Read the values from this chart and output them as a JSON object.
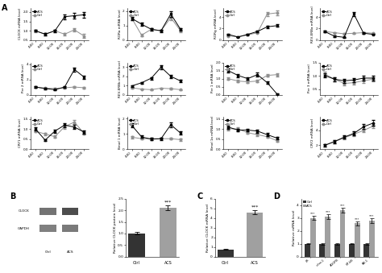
{
  "timepoints": [
    4,
    8,
    12,
    16,
    20,
    24
  ],
  "xtick_labels": [
    "4:00",
    "8:00",
    "12:00",
    "16:00",
    "20:00",
    "24:00"
  ],
  "plots": [
    {
      "ylabel": "CLOCK mRNA level",
      "ACS": [
        1.0,
        0.82,
        1.0,
        1.75,
        1.8,
        1.85
      ],
      "Ctrl": [
        1.0,
        0.82,
        1.0,
        0.82,
        1.05,
        0.72
      ],
      "ACS_err": [
        0.05,
        0.08,
        0.06,
        0.12,
        0.13,
        0.14
      ],
      "Ctrl_err": [
        0.06,
        0.07,
        0.07,
        0.07,
        0.09,
        0.1
      ],
      "ylim": [
        0.5,
        2.2
      ]
    },
    {
      "ylabel": "RORa mRNA level",
      "ACS": [
        1.5,
        1.1,
        0.75,
        0.65,
        1.8,
        0.75
      ],
      "Ctrl": [
        1.5,
        0.35,
        0.75,
        0.65,
        1.55,
        0.65
      ],
      "ACS_err": [
        0.12,
        0.1,
        0.08,
        0.08,
        0.18,
        0.09
      ],
      "Ctrl_err": [
        0.12,
        0.07,
        0.08,
        0.07,
        0.15,
        0.08
      ],
      "ylim": [
        0.0,
        2.2
      ]
    },
    {
      "ylabel": "RORg mRNA level",
      "ACS": [
        1.0,
        0.55,
        1.0,
        1.5,
        2.3,
        2.5
      ],
      "Ctrl": [
        0.75,
        0.6,
        0.9,
        1.3,
        4.5,
        4.7
      ],
      "ACS_err": [
        0.08,
        0.06,
        0.09,
        0.12,
        0.2,
        0.22
      ],
      "Ctrl_err": [
        0.07,
        0.06,
        0.08,
        0.11,
        0.4,
        0.42
      ],
      "ylim": [
        0.0,
        5.5
      ]
    },
    {
      "ylabel": "REV-ERBa mRNA level",
      "ACS": [
        1.5,
        0.7,
        0.5,
        4.5,
        1.2,
        1.0
      ],
      "Ctrl": [
        1.5,
        1.3,
        1.1,
        1.2,
        1.3,
        1.2
      ],
      "ACS_err": [
        0.15,
        0.09,
        0.07,
        0.4,
        0.12,
        0.1
      ],
      "Ctrl_err": [
        0.12,
        0.1,
        0.09,
        0.1,
        0.11,
        0.1
      ],
      "ylim": [
        0.0,
        5.5
      ]
    },
    {
      "ylabel": "Per 2 mRNA level",
      "ACS": [
        1.0,
        0.8,
        0.65,
        1.0,
        3.3,
        2.3
      ],
      "Ctrl": [
        1.0,
        0.85,
        0.8,
        0.9,
        1.0,
        0.9
      ],
      "ACS_err": [
        0.08,
        0.07,
        0.06,
        0.09,
        0.28,
        0.22
      ],
      "Ctrl_err": [
        0.07,
        0.06,
        0.06,
        0.07,
        0.08,
        0.08
      ],
      "ylim": [
        0.0,
        4.2
      ]
    },
    {
      "ylabel": "REV-ERBb mRNA level",
      "ACS": [
        0.95,
        1.3,
        1.8,
        3.0,
        2.0,
        1.5
      ],
      "Ctrl": [
        0.75,
        0.6,
        0.55,
        0.7,
        0.65,
        0.55
      ],
      "ACS_err": [
        0.09,
        0.1,
        0.13,
        0.22,
        0.15,
        0.12
      ],
      "Ctrl_err": [
        0.07,
        0.06,
        0.05,
        0.06,
        0.06,
        0.05
      ],
      "ylim": [
        0.0,
        3.5
      ]
    },
    {
      "ylabel": "Per 1 mRNA level",
      "ACS": [
        1.5,
        1.2,
        1.0,
        1.25,
        0.75,
        0.05
      ],
      "Ctrl": [
        1.0,
        0.85,
        0.8,
        0.85,
        1.2,
        1.25
      ],
      "ACS_err": [
        0.13,
        0.1,
        0.09,
        0.11,
        0.08,
        0.04
      ],
      "Ctrl_err": [
        0.08,
        0.07,
        0.07,
        0.07,
        0.09,
        0.1
      ],
      "ylim": [
        0.0,
        2.0
      ]
    },
    {
      "ylabel": "Per 3 mRNA level",
      "ACS": [
        1.02,
        0.88,
        0.82,
        0.85,
        0.92,
        0.92
      ],
      "Ctrl": [
        1.08,
        0.88,
        0.72,
        0.75,
        0.82,
        0.88
      ],
      "ACS_err": [
        0.08,
        0.07,
        0.07,
        0.07,
        0.08,
        0.09
      ],
      "Ctrl_err": [
        0.08,
        0.07,
        0.06,
        0.07,
        0.07,
        0.08
      ],
      "ylim": [
        0.3,
        1.5
      ]
    },
    {
      "ylabel": "CRY1 mRNA level",
      "ACS": [
        1.0,
        0.45,
        0.9,
        1.2,
        1.1,
        0.85
      ],
      "Ctrl": [
        0.9,
        0.75,
        0.62,
        1.12,
        1.35,
        0.78
      ],
      "ACS_err": [
        0.09,
        0.05,
        0.08,
        0.1,
        0.1,
        0.08
      ],
      "Ctrl_err": [
        0.07,
        0.06,
        0.06,
        0.09,
        0.1,
        0.07
      ],
      "ylim": [
        0.0,
        1.6
      ]
    },
    {
      "ylabel": "Bmal 1 mRNA level",
      "ACS": [
        1.55,
        0.8,
        0.65,
        0.68,
        1.6,
        1.05
      ],
      "Ctrl": [
        0.78,
        0.68,
        0.68,
        0.68,
        0.68,
        0.62
      ],
      "ACS_err": [
        0.13,
        0.08,
        0.07,
        0.07,
        0.15,
        0.1
      ],
      "Ctrl_err": [
        0.07,
        0.06,
        0.06,
        0.06,
        0.06,
        0.06
      ],
      "ylim": [
        0.0,
        2.1
      ]
    },
    {
      "ylabel": "Bmal 1a mRNA level",
      "ACS": [
        1.1,
        0.95,
        0.95,
        0.9,
        0.72,
        0.55
      ],
      "Ctrl": [
        1.02,
        1.0,
        0.82,
        0.72,
        0.62,
        0.42
      ],
      "ACS_err": [
        0.09,
        0.08,
        0.08,
        0.08,
        0.07,
        0.06
      ],
      "Ctrl_err": [
        0.09,
        0.09,
        0.07,
        0.07,
        0.06,
        0.05
      ],
      "ylim": [
        0.0,
        1.6
      ]
    },
    {
      "ylabel": "CRY2 mRNA level",
      "ACS": [
        2.0,
        2.5,
        3.1,
        3.6,
        4.5,
        5.0
      ],
      "Ctrl": [
        2.0,
        2.5,
        3.0,
        3.5,
        4.0,
        4.6
      ],
      "ACS_err": [
        0.15,
        0.18,
        0.22,
        0.26,
        0.32,
        0.38
      ],
      "Ctrl_err": [
        0.15,
        0.18,
        0.2,
        0.23,
        0.26,
        0.32
      ],
      "ylim": [
        1.5,
        5.8
      ]
    }
  ],
  "B_bar_values": [
    1.0,
    2.1
  ],
  "B_bar_err": [
    0.05,
    0.1
  ],
  "B_bar_labels": [
    "Ctrl",
    "ACS"
  ],
  "B_ylabel": "Relative CLOCK protein level",
  "B_ylim": [
    0,
    2.5
  ],
  "C_bar_values": [
    0.75,
    4.6
  ],
  "C_bar_err": [
    0.05,
    0.22
  ],
  "C_bar_labels": [
    "Ctrl",
    "ACS"
  ],
  "C_ylabel": "Relative CLOCK mRNA level",
  "C_ylim": [
    0,
    6.0
  ],
  "D_categories": [
    "LR",
    "c-fos-1",
    "AGGFB",
    "NF-kB",
    "PAI-1"
  ],
  "D_Ctrl": [
    1.0,
    1.0,
    1.0,
    1.0,
    1.0
  ],
  "D_ACS": [
    3.0,
    3.1,
    3.6,
    2.6,
    2.8
  ],
  "D_Ctrl_err": [
    0.05,
    0.06,
    0.06,
    0.05,
    0.06
  ],
  "D_ACS_err": [
    0.15,
    0.18,
    0.2,
    0.16,
    0.18
  ],
  "D_ylabel": "Relative mRNA level",
  "D_ylim": [
    0,
    4.5
  ],
  "color_bar_black": "#333333",
  "color_bar_gray": "#a0a0a0"
}
